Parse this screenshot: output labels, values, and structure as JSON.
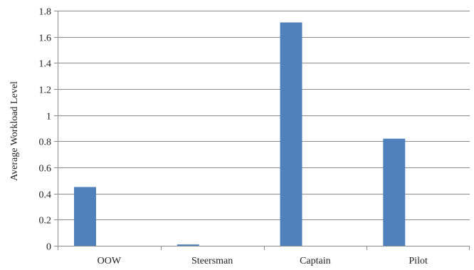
{
  "chart_data": {
    "type": "bar",
    "categories": [
      "OOW",
      "Steersman",
      "Captain",
      "Pilot"
    ],
    "values": [
      0.45,
      0.01,
      1.71,
      0.82
    ],
    "title": "",
    "xlabel": "",
    "ylabel": "Average Workload Level",
    "ylim": [
      0,
      1.8
    ],
    "yticks": [
      "0",
      "0.2",
      "0.4",
      "0.6",
      "0.8",
      "1",
      "1.2",
      "1.4",
      "1.6",
      "1.8"
    ],
    "grid": true,
    "legend": false,
    "bar_color": "#4f81bd",
    "grid_color": "#8c8c8c",
    "axis_color": "#8c8c8c"
  }
}
